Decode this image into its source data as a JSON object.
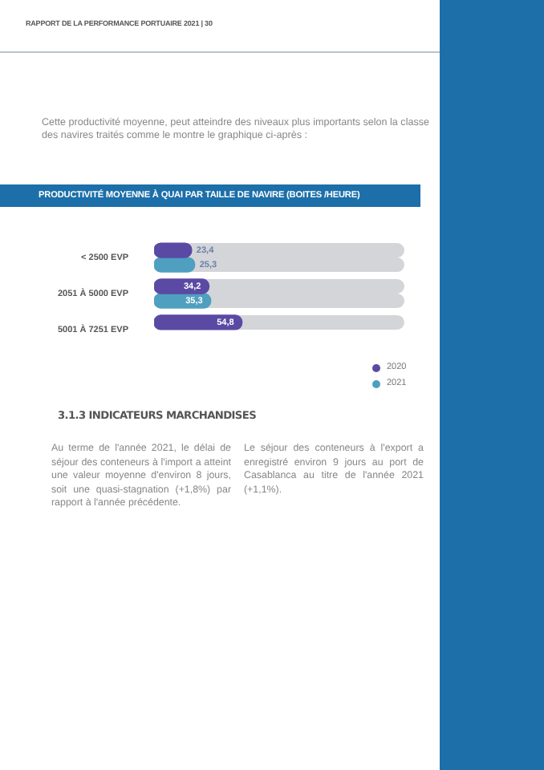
{
  "chart_data": {
    "type": "bar",
    "orientation": "horizontal",
    "title": "PRODUCTIVITÉ MOYENNE À QUAI PAR TAILLE DE NAVIRE (BOITES /HEURE)",
    "categories": [
      "< 2500 EVP",
      "2051 À 5000 EVP",
      "5001 À 7251 EVP"
    ],
    "series": [
      {
        "name": "2020",
        "color": "#5a4aa3",
        "values": [
          23.4,
          34.2,
          54.8
        ],
        "value_labels": [
          "23,4",
          "34,2",
          "54,8"
        ]
      },
      {
        "name": "2021",
        "color": "#4f9fc0",
        "values": [
          25.3,
          35.3,
          null
        ],
        "value_labels": [
          "25,3",
          "35,3",
          null
        ]
      }
    ],
    "legend": "bottom right",
    "grid": false,
    "tick_labels": "y",
    "annotations": [
      "RAPPORT DE LA PERFORMANCE PORTUAIRE 2021 | 30",
      "Cette productivité moyenne, peut atteindre des niveaux plus importants selon la classe des navires traités comme le montre le graphique ci-après :",
      "3.1.3 INDICATEURS MARCHANDISES",
      "Au terme de l'année 2021, le délai de séjour des conteneurs à l'import a atteint une valeur moyenne d'environ 8 jours, soit une quasi-stagnation (+1,8%) par rapport à l'année précédente.",
      "Le séjour des conteneurs à l'export a enregistré environ 9 jours au port de Casablanca au titre de l'année 2021 (+1,1%)."
    ]
  }
}
